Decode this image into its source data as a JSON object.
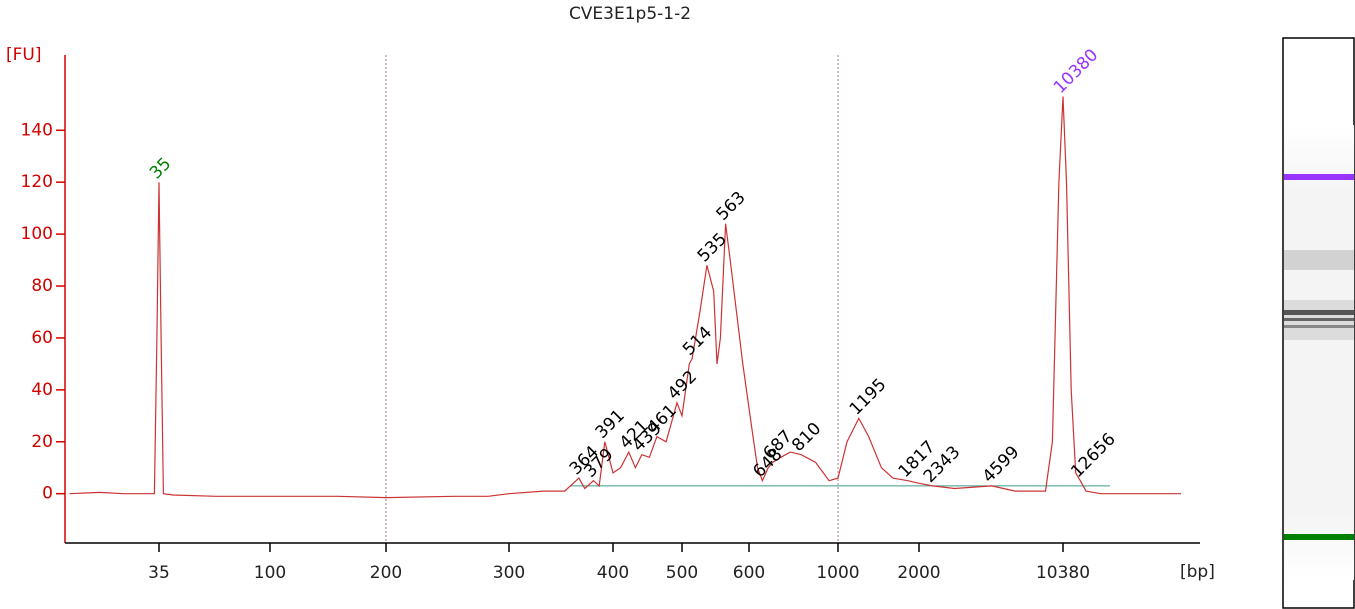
{
  "chart_data": {
    "type": "line",
    "title": "CVE3E1p5-1-2",
    "y_label": "[FU]",
    "x_label": "[bp]",
    "ylim": [
      -19,
      169
    ],
    "yticks": [
      0,
      20,
      40,
      60,
      80,
      100,
      120,
      140
    ],
    "xticks": [
      35,
      100,
      200,
      300,
      400,
      500,
      600,
      1000,
      2000,
      10380
    ],
    "vlines": [
      200,
      1000
    ],
    "axis_color": "#d40000",
    "x": [
      15,
      20,
      25,
      30,
      33.5,
      34.3,
      35,
      35.7,
      36.5,
      40,
      60,
      100,
      150,
      200,
      250,
      280,
      300,
      330,
      350,
      364,
      370,
      379,
      385,
      391,
      400,
      410,
      421,
      430,
      439,
      450,
      461,
      475,
      492,
      500,
      510,
      514,
      525,
      535,
      545,
      550,
      555,
      563,
      570,
      590,
      610,
      630,
      648,
      670,
      687,
      720,
      760,
      810,
      880,
      950,
      1000,
      1080,
      1195,
      1300,
      1450,
      1600,
      1817,
      2000,
      2343,
      3000,
      4599,
      6000,
      8500,
      9200,
      9900,
      10380,
      10800,
      11400,
      12000,
      12656,
      13500,
      16000,
      40000
    ],
    "series": [
      {
        "color": "#cc3333",
        "values": [
          0,
          0.5,
          0,
          0,
          0,
          60,
          120,
          60,
          0,
          -0.5,
          -1,
          -1,
          -1,
          -1.5,
          -1,
          -1,
          0,
          1,
          1,
          6,
          2,
          5,
          3,
          20,
          8,
          10,
          16,
          10,
          15,
          14,
          22,
          20,
          35,
          30,
          50,
          52,
          70,
          88,
          78,
          50,
          60,
          104,
          90,
          50,
          25,
          10,
          5,
          10,
          12,
          14,
          16,
          15,
          12,
          5,
          6,
          20,
          29,
          22,
          10,
          6,
          5,
          4,
          3,
          2,
          3,
          1,
          1,
          20,
          120,
          153,
          120,
          40,
          8,
          5,
          1,
          0,
          0
        ]
      }
    ],
    "peak_label_color": "#000000",
    "peaks": [
      {
        "x": 35,
        "color": "#008000"
      },
      {
        "x": 364
      },
      {
        "x": 379
      },
      {
        "x": 391
      },
      {
        "x": 421
      },
      {
        "x": 439
      },
      {
        "x": 461
      },
      {
        "x": 492
      },
      {
        "x": 514
      },
      {
        "x": 535
      },
      {
        "x": 563
      },
      {
        "x": 648
      },
      {
        "x": 687
      },
      {
        "x": 810
      },
      {
        "x": 1195
      },
      {
        "x": 1817
      },
      {
        "x": 2343
      },
      {
        "x": 4599
      },
      {
        "x": 10380,
        "color": "#9933ff"
      },
      {
        "x": 12656
      }
    ]
  }
}
